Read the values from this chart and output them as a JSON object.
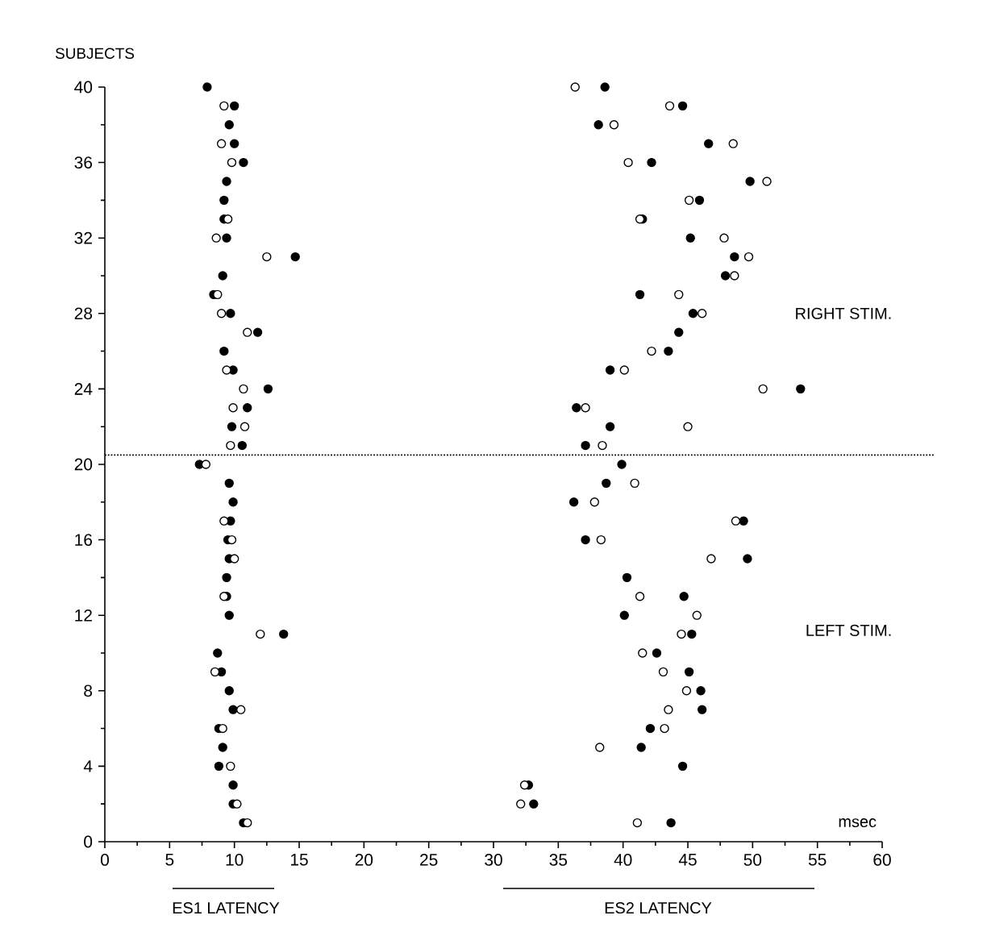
{
  "chart_data": {
    "type": "scatter",
    "ylabel": "SUBJECTS",
    "xlim": [
      0,
      60
    ],
    "ylim": [
      0,
      40
    ],
    "xticks": [
      0,
      5,
      10,
      15,
      20,
      25,
      30,
      35,
      40,
      45,
      50,
      55,
      60
    ],
    "yticks": [
      0,
      4,
      8,
      12,
      16,
      20,
      24,
      28,
      32,
      36,
      40
    ],
    "marker": "circle",
    "grid": false,
    "series": [
      {
        "color": "#000000",
        "x": [
          7.9,
          10.0,
          9.6,
          10.0,
          10.7,
          9.4,
          9.2,
          9.2,
          9.4,
          14.7,
          9.1,
          8.4,
          9.7,
          11.8,
          9.2,
          9.9,
          12.6,
          11.0,
          9.8,
          10.6,
          7.3,
          9.6,
          9.9,
          9.7,
          9.5,
          9.6,
          9.4,
          9.4,
          9.6,
          13.8,
          8.7,
          9.0,
          9.6,
          9.9,
          8.8,
          9.1,
          8.8,
          9.9,
          9.9,
          10.7,
          38.6,
          44.6,
          38.1,
          46.6,
          42.2,
          49.8,
          45.9,
          41.5,
          45.2,
          48.6,
          47.9,
          41.3,
          45.4,
          44.3,
          43.5,
          39.0,
          53.7,
          36.4,
          39.0,
          37.1,
          39.9,
          38.7,
          36.2,
          49.3,
          37.1,
          49.6,
          40.3,
          44.7,
          40.1,
          45.3,
          42.6,
          45.1,
          46.0,
          46.1,
          42.1,
          41.4,
          44.6,
          32.7,
          33.1,
          43.7
        ],
        "values": [
          40,
          39,
          38,
          37,
          36,
          35,
          34,
          33,
          32,
          31,
          30,
          29,
          28,
          27,
          26,
          25,
          24,
          23,
          22,
          21,
          20,
          19,
          18,
          17,
          16,
          15,
          14,
          13,
          12,
          11,
          10,
          9,
          8,
          7,
          6,
          5,
          4,
          3,
          2,
          1,
          40,
          39,
          38,
          37,
          36,
          35,
          34,
          33,
          32,
          31,
          30,
          29,
          28,
          27,
          26,
          25,
          24,
          23,
          22,
          21,
          20,
          19,
          18,
          17,
          16,
          15,
          14,
          13,
          12,
          11,
          10,
          9,
          8,
          7,
          6,
          5,
          4,
          3,
          2,
          1
        ]
      },
      {
        "color": "#ffffff",
        "x": [
          9.2,
          9.0,
          9.8,
          9.5,
          8.6,
          12.5,
          8.7,
          9.0,
          11.0,
          9.4,
          10.7,
          9.9,
          10.8,
          9.7,
          7.8,
          9.2,
          9.8,
          10.0,
          9.2,
          12.0,
          8.5,
          10.5,
          9.1,
          9.7,
          10.2,
          11.0,
          36.3,
          43.6,
          39.3,
          48.5,
          40.4,
          51.1,
          45.1,
          41.3,
          47.8,
          49.7,
          48.6,
          44.3,
          46.1,
          42.2,
          40.1,
          50.8,
          37.1,
          45.0,
          38.4,
          40.9,
          37.8,
          48.7,
          38.3,
          46.8,
          41.3,
          45.7,
          44.5,
          41.5,
          43.1,
          44.9,
          43.5,
          43.2,
          38.2,
          32.4,
          32.1,
          41.1
        ],
        "values": [
          39,
          37,
          36,
          33,
          32,
          31,
          29,
          28,
          27,
          25,
          24,
          23,
          22,
          21,
          20,
          17,
          16,
          15,
          13,
          11,
          9,
          7,
          6,
          4,
          2,
          1,
          40,
          39,
          38,
          37,
          36,
          35,
          34,
          33,
          32,
          31,
          30,
          29,
          28,
          26,
          25,
          24,
          23,
          22,
          21,
          19,
          18,
          17,
          16,
          15,
          13,
          12,
          11,
          10,
          9,
          8,
          7,
          6,
          5,
          3,
          2,
          1
        ]
      }
    ],
    "ref_lines": [
      {
        "axis": "y",
        "value": 20.5,
        "line_style": "dotted",
        "color": "#000000"
      }
    ],
    "annotations": [
      "RIGHT STIM.",
      "LEFT STIM.",
      "msec",
      "ES1 LATENCY",
      "ES2 LATENCY"
    ]
  }
}
